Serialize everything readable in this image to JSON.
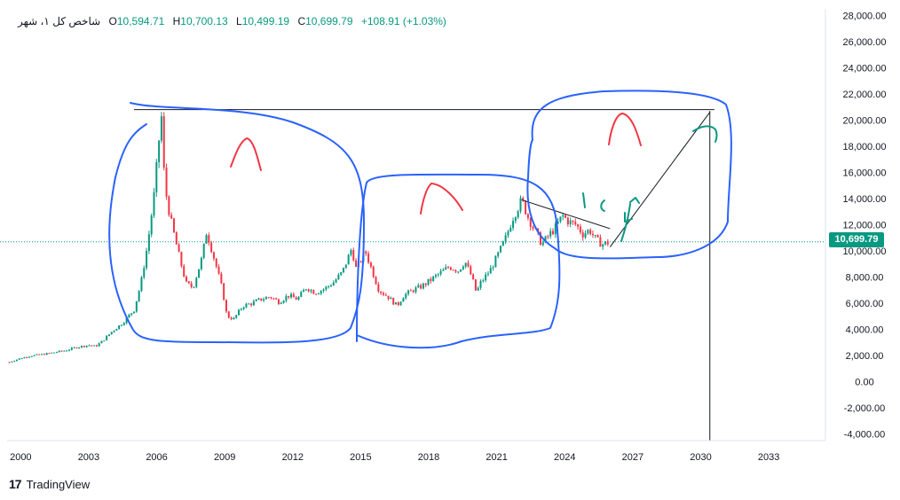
{
  "header": {
    "symbol": "شاخص کل ۱، شهر",
    "o_key": "O",
    "o_val": "10,594.71",
    "h_key": "H",
    "h_val": "10,700.13",
    "l_key": "L",
    "l_val": "10,499.19",
    "c_key": "C",
    "c_val": "10,699.79",
    "change": "+108.91 (+1.03%)"
  },
  "last_price_label": "10,699.79",
  "footer": {
    "brand": "TradingView",
    "logo": "17"
  },
  "colors": {
    "up": "#089981",
    "down": "#f23645",
    "drawing_blue": "#2962ff",
    "drawing_red": "#f23645",
    "drawing_green": "#089981",
    "line": "#131722"
  },
  "chart_data": {
    "type": "candlestick",
    "x_ticks": [
      "2000",
      "2003",
      "2006",
      "2009",
      "2012",
      "2015",
      "2018",
      "2021",
      "2024",
      "2027",
      "2030",
      "2033"
    ],
    "y_ticks": [
      "28,000.00",
      "26,000.00",
      "24,000.00",
      "22,000.00",
      "20,000.00",
      "18,000.00",
      "16,000.00",
      "14,000.00",
      "12,000.00",
      "10,000.00",
      "8,000.00",
      "6,000.00",
      "4,000.00",
      "2,000.00",
      "0.00",
      "-2,000.00",
      "-4,000.00"
    ],
    "y_range": [
      -4500,
      28500
    ],
    "x_range": [
      1999.4,
      2035.5
    ],
    "last_close": 10699.79,
    "series": [
      {
        "x": 1999.5,
        "y": 1500
      },
      {
        "x": 2000.0,
        "y": 1800
      },
      {
        "x": 2000.5,
        "y": 2000
      },
      {
        "x": 2001.0,
        "y": 2100
      },
      {
        "x": 2001.5,
        "y": 2250
      },
      {
        "x": 2002.0,
        "y": 2400
      },
      {
        "x": 2002.5,
        "y": 2650
      },
      {
        "x": 2003.0,
        "y": 2800
      },
      {
        "x": 2003.3,
        "y": 2700
      },
      {
        "x": 2003.6,
        "y": 3100
      },
      {
        "x": 2004.0,
        "y": 3800
      },
      {
        "x": 2004.5,
        "y": 4500
      },
      {
        "x": 2005.0,
        "y": 5500
      },
      {
        "x": 2005.3,
        "y": 7500
      },
      {
        "x": 2005.6,
        "y": 10500
      },
      {
        "x": 2005.9,
        "y": 14500
      },
      {
        "x": 2006.1,
        "y": 18500
      },
      {
        "x": 2006.2,
        "y": 20600
      },
      {
        "x": 2006.35,
        "y": 15000
      },
      {
        "x": 2006.6,
        "y": 12500
      },
      {
        "x": 2007.0,
        "y": 9500
      },
      {
        "x": 2007.3,
        "y": 7500
      },
      {
        "x": 2007.6,
        "y": 7200
      },
      {
        "x": 2008.0,
        "y": 9500
      },
      {
        "x": 2008.2,
        "y": 11500
      },
      {
        "x": 2008.6,
        "y": 9000
      },
      {
        "x": 2008.9,
        "y": 7000
      },
      {
        "x": 2009.1,
        "y": 5000
      },
      {
        "x": 2009.4,
        "y": 4800
      },
      {
        "x": 2009.8,
        "y": 5800
      },
      {
        "x": 2010.2,
        "y": 6000
      },
      {
        "x": 2010.6,
        "y": 6300
      },
      {
        "x": 2011.0,
        "y": 6500
      },
      {
        "x": 2011.4,
        "y": 6100
      },
      {
        "x": 2011.8,
        "y": 6600
      },
      {
        "x": 2012.2,
        "y": 6300
      },
      {
        "x": 2012.6,
        "y": 7200
      },
      {
        "x": 2013.0,
        "y": 6800
      },
      {
        "x": 2013.4,
        "y": 7100
      },
      {
        "x": 2013.8,
        "y": 7600
      },
      {
        "x": 2014.2,
        "y": 8400
      },
      {
        "x": 2014.6,
        "y": 10200
      },
      {
        "x": 2014.8,
        "y": 8600
      },
      {
        "x": 2015.2,
        "y": 10000
      },
      {
        "x": 2015.5,
        "y": 8500
      },
      {
        "x": 2015.8,
        "y": 7000
      },
      {
        "x": 2016.2,
        "y": 6500
      },
      {
        "x": 2016.6,
        "y": 5800
      },
      {
        "x": 2016.9,
        "y": 6600
      },
      {
        "x": 2017.3,
        "y": 7000
      },
      {
        "x": 2017.7,
        "y": 7300
      },
      {
        "x": 2018.1,
        "y": 7800
      },
      {
        "x": 2018.5,
        "y": 8300
      },
      {
        "x": 2018.9,
        "y": 8800
      },
      {
        "x": 2019.3,
        "y": 8500
      },
      {
        "x": 2019.6,
        "y": 9200
      },
      {
        "x": 2019.9,
        "y": 8000
      },
      {
        "x": 2020.1,
        "y": 6800
      },
      {
        "x": 2020.3,
        "y": 7600
      },
      {
        "x": 2020.7,
        "y": 8500
      },
      {
        "x": 2021.0,
        "y": 9500
      },
      {
        "x": 2021.4,
        "y": 11000
      },
      {
        "x": 2021.7,
        "y": 12500
      },
      {
        "x": 2022.1,
        "y": 13900
      },
      {
        "x": 2022.4,
        "y": 12500
      },
      {
        "x": 2022.7,
        "y": 11500
      },
      {
        "x": 2023.0,
        "y": 10500
      },
      {
        "x": 2023.3,
        "y": 11200
      },
      {
        "x": 2023.6,
        "y": 11800
      },
      {
        "x": 2023.9,
        "y": 12700
      },
      {
        "x": 2024.2,
        "y": 12200
      },
      {
        "x": 2024.5,
        "y": 12000
      },
      {
        "x": 2024.8,
        "y": 11300
      },
      {
        "x": 2025.1,
        "y": 11600
      },
      {
        "x": 2025.4,
        "y": 10800
      },
      {
        "x": 2025.7,
        "y": 10500
      },
      {
        "x": 2026.0,
        "y": 10700
      }
    ]
  },
  "annotations": {
    "lines": [
      {
        "x1": 2005.0,
        "y1": 20800,
        "x2": 2030.6,
        "y2": 20800
      },
      {
        "x1": 2022.1,
        "y1": 13900,
        "x2": 2026.0,
        "y2": 11700
      },
      {
        "x1": 2026.0,
        "y1": 10300,
        "x2": 2030.4,
        "y2": 20600
      },
      {
        "x1": 2030.4,
        "y1": 20700,
        "x2": 2030.4,
        "y2": -4500
      }
    ]
  }
}
